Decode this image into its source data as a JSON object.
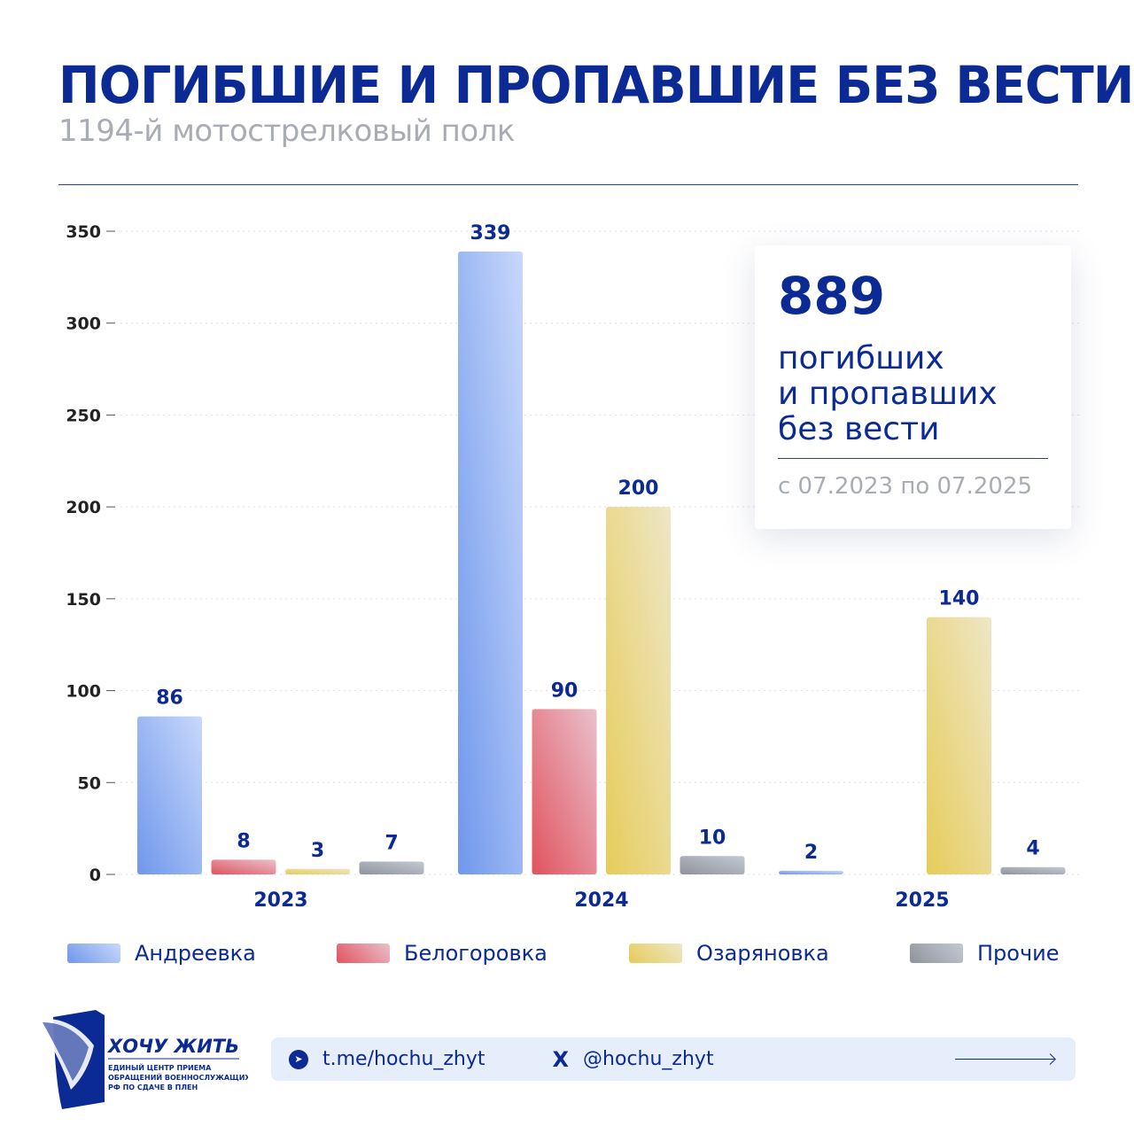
{
  "header": {
    "title": "ПОГИБШИЕ И ПРОПАВШИЕ БЕЗ ВЕСТИ",
    "subtitle": "1194-й мотострелковый полк"
  },
  "card": {
    "total": "889",
    "text": "погибших\nи пропавших\nбез вести",
    "period": "с 07.2023 по 07.2025"
  },
  "colors": {
    "Андреевка": "#6f97ec",
    "Белогоровка": "#e0535e",
    "Озаряновка": "#e6cc5a",
    "Прочие": "#8f949c",
    "accent": "#0b2a93"
  },
  "chart_data": {
    "type": "bar",
    "categories": [
      "2023",
      "2024",
      "2025"
    ],
    "series": [
      {
        "name": "Андреевка",
        "values": [
          86,
          339,
          2
        ]
      },
      {
        "name": "Белогоровка",
        "values": [
          8,
          90,
          null
        ]
      },
      {
        "name": "Озаряновка",
        "values": [
          3,
          200,
          140
        ]
      },
      {
        "name": "Прочие",
        "values": [
          7,
          10,
          4
        ]
      }
    ],
    "yticks": [
      0,
      50,
      100,
      150,
      200,
      250,
      300,
      350
    ],
    "ylim": [
      0,
      350
    ],
    "grid": true,
    "legend": "bottom"
  },
  "logo": {
    "name": "ХОЧУ ЖИТЬ",
    "tagline": "ЕДИНЫЙ ЦЕНТР ПРИЕМА ОБРАЩЕНИЙ ВОЕННОСЛУЖАЩИХ РФ ПО СДАЧЕ В ПЛЕН"
  },
  "footer": {
    "telegram": "t.me/hochu_zhyt",
    "x": "@hochu_zhyt",
    "x_icon": "X",
    "telegram_icon": "telegram-icon"
  }
}
